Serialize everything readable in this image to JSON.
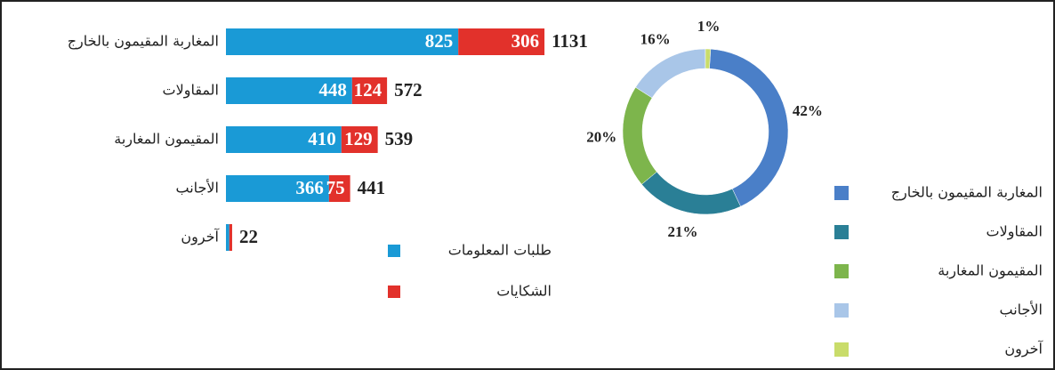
{
  "chart_data": [
    {
      "type": "bar",
      "orientation": "horizontal",
      "stacked": true,
      "categories": [
        "المغاربة المقيمون بالخارج",
        "المقاولات",
        "المقيمون المغاربة",
        "الأجانب",
        "آخرون"
      ],
      "series": [
        {
          "name": "طلبات المعلومات",
          "color": "#1a9ad6",
          "values": [
            825,
            448,
            410,
            366,
            12
          ],
          "value_labels": [
            "825",
            "448",
            "410",
            "366",
            null
          ]
        },
        {
          "name": "الشكايات",
          "color": "#e2312b",
          "values": [
            306,
            124,
            129,
            75,
            10
          ],
          "value_labels": [
            "306",
            "124",
            "129",
            "75",
            null
          ]
        }
      ],
      "totals": [
        1131,
        572,
        539,
        441,
        22
      ]
    },
    {
      "type": "pie",
      "donut": true,
      "categories": [
        "المغاربة المقيمون بالخارج",
        "المقاولات",
        "المقيمون المغاربة",
        "الأجانب",
        "آخرون"
      ],
      "values": [
        42,
        21,
        20,
        16,
        1
      ],
      "value_labels": [
        "42%",
        "21%",
        "20%",
        "16%",
        "1%"
      ],
      "colors": [
        "#4a7fc8",
        "#2a7f96",
        "#7db54c",
        "#a9c6e8",
        "#c9dc6a"
      ]
    }
  ]
}
